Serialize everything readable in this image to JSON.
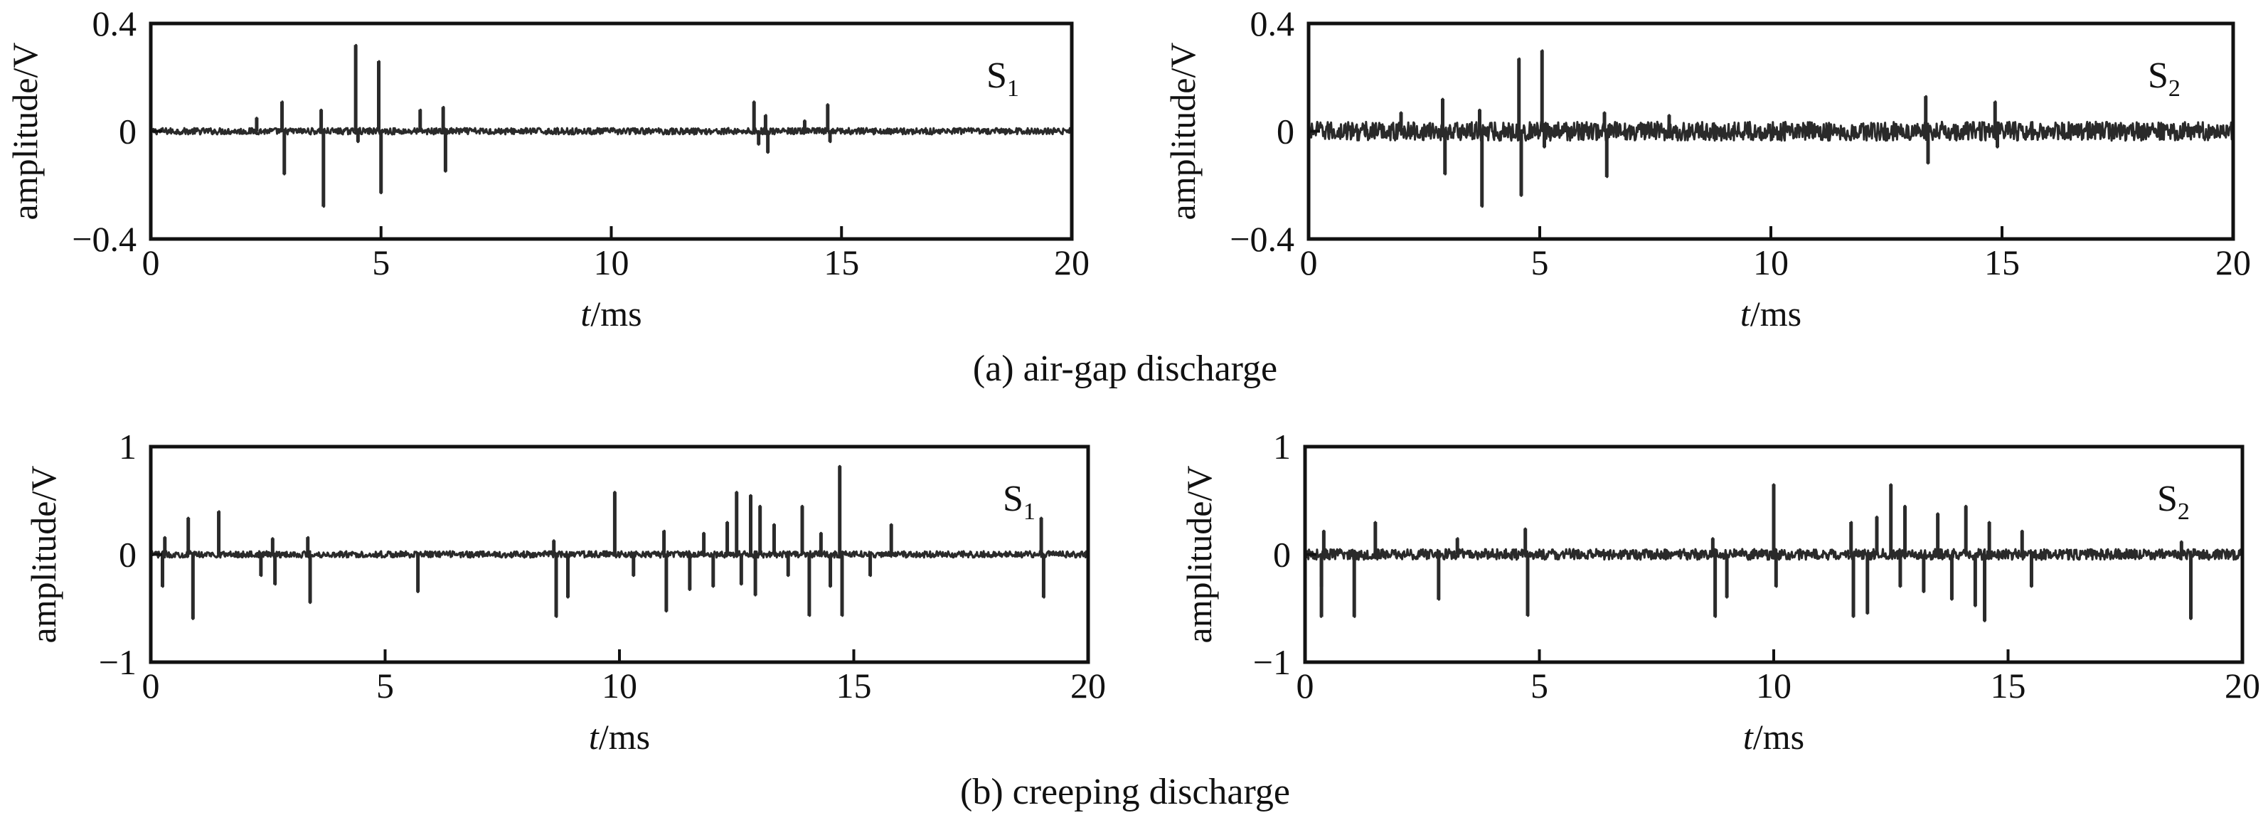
{
  "captions": [
    "(a) air-gap discharge",
    "(b) creeping discharge"
  ],
  "colors": {
    "trace": "#2a2a2a",
    "axes": "#111111",
    "background": "#ffffff"
  },
  "chart_data": [
    {
      "type": "line",
      "panel": "a-left",
      "label": "S",
      "label_sub": "1",
      "xlabel_italic": "t",
      "xlabel_rest": "/ms",
      "ylabel": "amplitude/V",
      "xlim": [
        0,
        20
      ],
      "ylim": [
        -0.4,
        0.4
      ],
      "xticks": [
        0,
        5,
        10,
        15,
        20
      ],
      "yticks": [
        0.4,
        0,
        -0.4
      ],
      "ytick_labels": [
        "0.4",
        "0",
        "−0.4"
      ],
      "noise_amplitude": 0.012,
      "spikes": [
        [
          2.3,
          0.05
        ],
        [
          2.85,
          0.11
        ],
        [
          2.9,
          -0.16
        ],
        [
          3.7,
          0.08
        ],
        [
          3.75,
          -0.28
        ],
        [
          4.45,
          0.32
        ],
        [
          4.5,
          -0.04
        ],
        [
          4.95,
          0.26
        ],
        [
          5.0,
          -0.23
        ],
        [
          5.85,
          0.08
        ],
        [
          6.35,
          0.09
        ],
        [
          6.4,
          -0.15
        ],
        [
          13.1,
          0.11
        ],
        [
          13.2,
          -0.05
        ],
        [
          13.35,
          0.06
        ],
        [
          13.4,
          -0.08
        ],
        [
          14.2,
          0.04
        ],
        [
          14.7,
          0.1
        ],
        [
          14.75,
          -0.04
        ]
      ]
    },
    {
      "type": "line",
      "panel": "a-right",
      "label": "S",
      "label_sub": "2",
      "xlabel_italic": "t",
      "xlabel_rest": "/ms",
      "ylabel": "amplitude/V",
      "xlim": [
        0,
        20
      ],
      "ylim": [
        -0.4,
        0.4
      ],
      "xticks": [
        0,
        5,
        10,
        15,
        20
      ],
      "yticks": [
        0.4,
        0,
        -0.4
      ],
      "ytick_labels": [
        "0.4",
        "0",
        "−0.4"
      ],
      "noise_amplitude": 0.035,
      "spikes": [
        [
          2.0,
          0.07
        ],
        [
          2.9,
          0.12
        ],
        [
          2.95,
          -0.16
        ],
        [
          3.7,
          0.08
        ],
        [
          3.75,
          -0.28
        ],
        [
          4.55,
          0.27
        ],
        [
          4.6,
          -0.24
        ],
        [
          5.05,
          0.3
        ],
        [
          5.1,
          -0.06
        ],
        [
          6.4,
          0.07
        ],
        [
          6.45,
          -0.17
        ],
        [
          7.8,
          0.06
        ],
        [
          13.35,
          0.13
        ],
        [
          13.4,
          -0.12
        ],
        [
          14.85,
          0.11
        ],
        [
          14.9,
          -0.06
        ]
      ]
    },
    {
      "type": "line",
      "panel": "b-left",
      "label": "S",
      "label_sub": "1",
      "xlabel_italic": "t",
      "xlabel_rest": "/ms",
      "ylabel": "amplitude/V",
      "xlim": [
        0,
        20
      ],
      "ylim": [
        -1,
        1
      ],
      "xticks": [
        0,
        5,
        10,
        15,
        20
      ],
      "yticks": [
        1,
        0,
        -1
      ],
      "ytick_labels": [
        "1",
        "0",
        "−1"
      ],
      "noise_amplitude": 0.03,
      "spikes": [
        [
          0.25,
          -0.3
        ],
        [
          0.3,
          0.16
        ],
        [
          0.8,
          0.34
        ],
        [
          0.9,
          -0.6
        ],
        [
          1.45,
          0.4
        ],
        [
          2.35,
          -0.2
        ],
        [
          2.6,
          0.15
        ],
        [
          2.65,
          -0.28
        ],
        [
          3.35,
          0.16
        ],
        [
          3.4,
          -0.45
        ],
        [
          5.7,
          -0.35
        ],
        [
          8.6,
          0.13
        ],
        [
          8.65,
          -0.58
        ],
        [
          8.9,
          -0.4
        ],
        [
          9.9,
          0.58
        ],
        [
          10.3,
          -0.2
        ],
        [
          10.95,
          0.22
        ],
        [
          11.0,
          -0.53
        ],
        [
          11.5,
          -0.33
        ],
        [
          11.8,
          0.2
        ],
        [
          12.0,
          -0.3
        ],
        [
          12.3,
          0.3
        ],
        [
          12.5,
          0.58
        ],
        [
          12.6,
          -0.28
        ],
        [
          12.8,
          0.55
        ],
        [
          12.9,
          -0.38
        ],
        [
          13.0,
          0.45
        ],
        [
          13.3,
          0.28
        ],
        [
          13.6,
          -0.2
        ],
        [
          13.9,
          0.45
        ],
        [
          14.05,
          -0.57
        ],
        [
          14.3,
          0.2
        ],
        [
          14.5,
          -0.3
        ],
        [
          14.7,
          0.82
        ],
        [
          14.75,
          -0.57
        ],
        [
          15.35,
          -0.2
        ],
        [
          15.8,
          0.28
        ],
        [
          19.0,
          0.34
        ],
        [
          19.05,
          -0.4
        ]
      ]
    },
    {
      "type": "line",
      "panel": "b-right",
      "label": "S",
      "label_sub": "2",
      "xlabel_italic": "t",
      "xlabel_rest": "/ms",
      "ylabel": "amplitude/V",
      "xlim": [
        0,
        20
      ],
      "ylim": [
        -1,
        1
      ],
      "xticks": [
        0,
        5,
        10,
        15,
        20
      ],
      "yticks": [
        1,
        0,
        -1
      ],
      "ytick_labels": [
        "1",
        "0",
        "−1"
      ],
      "noise_amplitude": 0.05,
      "spikes": [
        [
          0.35,
          -0.3
        ],
        [
          0.4,
          0.22
        ],
        [
          0.35,
          -0.58
        ],
        [
          1.05,
          -0.58
        ],
        [
          1.5,
          0.3
        ],
        [
          2.85,
          -0.42
        ],
        [
          3.25,
          0.15
        ],
        [
          4.7,
          0.24
        ],
        [
          4.75,
          -0.57
        ],
        [
          8.7,
          0.15
        ],
        [
          8.75,
          -0.58
        ],
        [
          9.0,
          -0.4
        ],
        [
          10.0,
          0.65
        ],
        [
          10.05,
          -0.3
        ],
        [
          11.65,
          0.3
        ],
        [
          11.7,
          -0.58
        ],
        [
          12.0,
          -0.55
        ],
        [
          12.2,
          0.35
        ],
        [
          12.5,
          0.65
        ],
        [
          12.7,
          -0.3
        ],
        [
          12.8,
          0.45
        ],
        [
          13.2,
          -0.35
        ],
        [
          13.5,
          0.38
        ],
        [
          13.8,
          -0.42
        ],
        [
          14.1,
          0.45
        ],
        [
          14.3,
          -0.48
        ],
        [
          14.5,
          -0.62
        ],
        [
          14.6,
          0.3
        ],
        [
          15.3,
          0.22
        ],
        [
          15.5,
          -0.3
        ],
        [
          18.7,
          0.12
        ],
        [
          18.9,
          -0.6
        ]
      ]
    }
  ]
}
